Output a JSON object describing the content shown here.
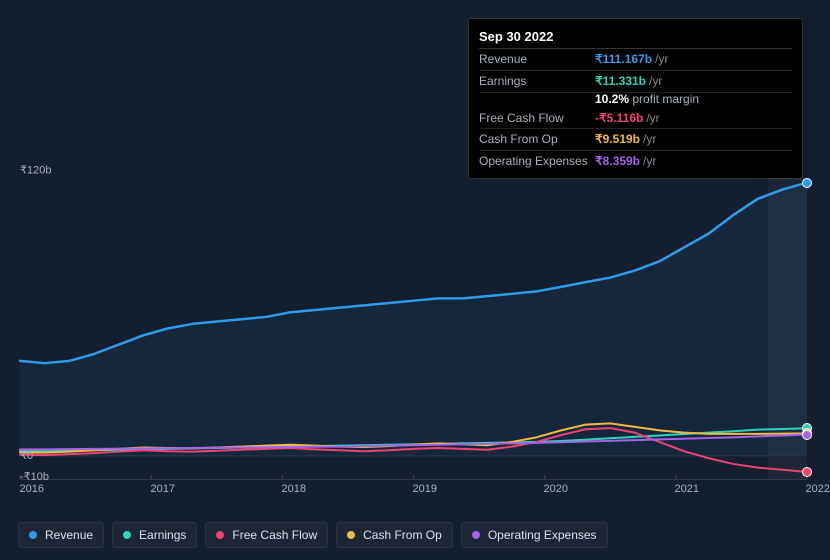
{
  "tooltip": {
    "date": "Sep 30 2022",
    "rows": [
      {
        "label": "Revenue",
        "value": "₹111.167b",
        "unit": "/yr",
        "color": "#2f9ceb"
      },
      {
        "label": "Earnings",
        "value": "₹11.331b",
        "unit": "/yr",
        "color": "#2dd4bb",
        "sub_pct": "10.2%",
        "sub_text": "profit margin"
      },
      {
        "label": "Free Cash Flow",
        "value": "-₹5.116b",
        "unit": "/yr",
        "color": "#ef4472"
      },
      {
        "label": "Cash From Op",
        "value": "₹9.519b",
        "unit": "/yr",
        "color": "#f4b942"
      },
      {
        "label": "Operating Expenses",
        "value": "₹8.359b",
        "unit": "/yr",
        "color": "#a463e8"
      }
    ]
  },
  "chart": {
    "type": "line",
    "background_color": "#131e2f",
    "x_years": [
      "2016",
      "2017",
      "2018",
      "2019",
      "2020",
      "2021",
      "2022"
    ],
    "y_top_label": "₹120b",
    "y_zero_label": "₹0",
    "y_min_label": "-₹10b",
    "y_min": -10,
    "y_max": 120,
    "future_shade_from_index": 5.7,
    "gridline_color": "#2a3442",
    "series": [
      {
        "name": "Revenue",
        "color": "#2f9ceb",
        "width": 2.5,
        "fill_opacity": 0.08,
        "values": [
          41,
          40,
          41,
          44,
          48,
          52,
          55,
          57,
          58,
          59,
          60,
          62,
          63,
          64,
          65,
          66,
          67,
          68,
          68,
          69,
          70,
          71,
          73,
          75,
          77,
          80,
          84,
          90,
          96,
          104,
          111,
          115,
          118
        ]
      },
      {
        "name": "Earnings",
        "color": "#2dd4bb",
        "width": 2,
        "fill_opacity": 0,
        "values": [
          2,
          2,
          2.2,
          2.4,
          2.6,
          2.8,
          3,
          3.2,
          3.4,
          3.6,
          3.8,
          4,
          4.2,
          4.4,
          4.6,
          4.8,
          5,
          5.2,
          5.4,
          5.6,
          5.8,
          6,
          6.4,
          7,
          7.6,
          8.2,
          8.8,
          9.4,
          10,
          10.6,
          11.3,
          11.6,
          11.9
        ]
      },
      {
        "name": "Free Cash Flow",
        "color": "#ef4472",
        "width": 2,
        "fill_opacity": 0,
        "values": [
          0.5,
          0.3,
          0.7,
          1.2,
          1.8,
          2.4,
          2.0,
          1.8,
          2.2,
          2.6,
          3.0,
          3.4,
          2.8,
          2.4,
          2.0,
          2.4,
          3.0,
          3.4,
          3.0,
          2.6,
          4.0,
          6.0,
          9.0,
          11.5,
          12.0,
          10.0,
          6.0,
          2.0,
          -1.0,
          -3.5,
          -5.1,
          -6.0,
          -7.0
        ]
      },
      {
        "name": "Cash From Op",
        "color": "#f4b942",
        "width": 2,
        "fill_opacity": 0,
        "values": [
          1.5,
          1.4,
          1.8,
          2.4,
          3.0,
          3.6,
          3.4,
          3.2,
          3.6,
          4.0,
          4.4,
          4.8,
          4.4,
          4.0,
          3.8,
          4.2,
          4.8,
          5.4,
          5.0,
          4.6,
          6.0,
          8.0,
          11.0,
          13.5,
          14.0,
          12.5,
          11.0,
          10.0,
          9.5,
          9.5,
          9.5,
          9.6,
          9.7
        ]
      },
      {
        "name": "Operating Expenses",
        "color": "#a463e8",
        "width": 2,
        "fill_opacity": 0,
        "values": [
          2.8,
          2.8,
          2.9,
          3.0,
          3.1,
          3.2,
          3.3,
          3.4,
          3.5,
          3.6,
          3.7,
          3.8,
          3.9,
          4.0,
          4.2,
          4.4,
          4.6,
          4.8,
          5.0,
          5.2,
          5.4,
          5.6,
          5.9,
          6.2,
          6.5,
          6.8,
          7.1,
          7.4,
          7.7,
          8.0,
          8.4,
          8.8,
          9.2
        ]
      }
    ]
  },
  "legend": [
    {
      "label": "Revenue",
      "color": "#2f9ceb"
    },
    {
      "label": "Earnings",
      "color": "#2dd4bb"
    },
    {
      "label": "Free Cash Flow",
      "color": "#ef4472"
    },
    {
      "label": "Cash From Op",
      "color": "#f4b942"
    },
    {
      "label": "Operating Expenses",
      "color": "#a463e8"
    }
  ]
}
